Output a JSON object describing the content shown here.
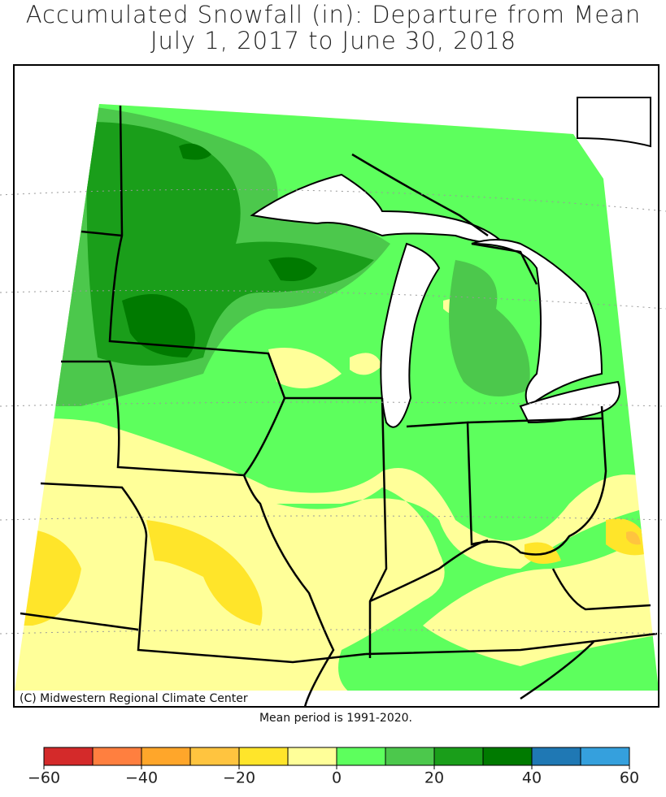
{
  "title_lines": [
    "Accumulated Snowfall (in): Departure from Mean",
    "July 1, 2017 to June 30, 2018"
  ],
  "copyright": "(C) Midwestern Regional Climate Center",
  "footnote": "Mean period is 1991-2020.",
  "colorbar": {
    "bins": [
      -60,
      -50,
      -40,
      -30,
      -20,
      -10,
      0,
      10,
      20,
      30,
      40,
      50,
      60
    ],
    "colors": [
      "#d42a2a",
      "#ff7f3f",
      "#ffa62a",
      "#ffc43f",
      "#ffe52a",
      "#ffff99",
      "#5dff5d",
      "#4cc84c",
      "#1a9e1a",
      "#007a00",
      "#1f78b4",
      "#35a0dd"
    ],
    "ticks": [
      {
        "value": -60,
        "label": "−60"
      },
      {
        "value": -40,
        "label": "−40"
      },
      {
        "value": -20,
        "label": "−20"
      },
      0,
      20,
      40,
      60
    ]
  }
}
